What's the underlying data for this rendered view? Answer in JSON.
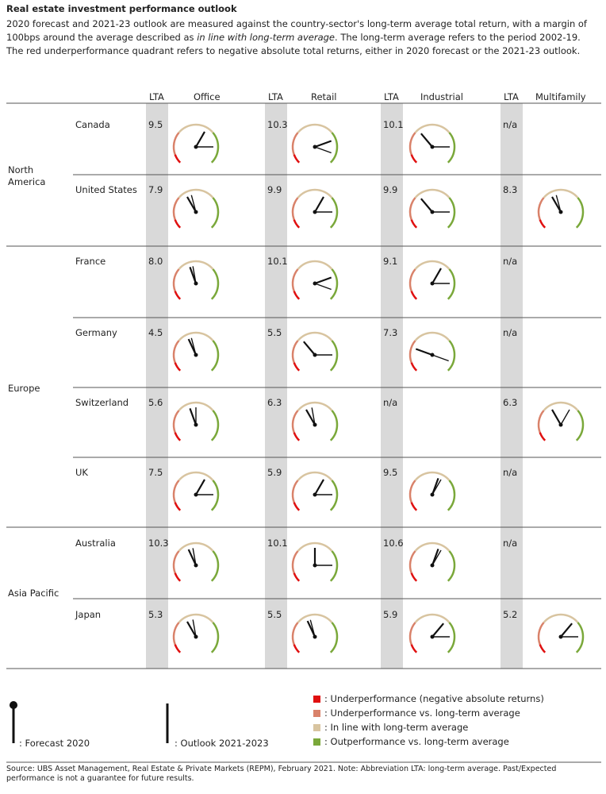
{
  "header": {
    "title": "Real estate investment performance outlook",
    "intro_before": "2020 forecast and 2021-23 outlook are measured against the country-sector's long-term average total return, with a margin of 100bps around the average described as ",
    "intro_italic": "in line with long-term average",
    "intro_after": ". The long-term average refers to the period 2002-19. The red underperformance quadrant refers to negative absolute total returns, either in 2020 forecast or the 2021-23 outlook."
  },
  "table": {
    "lta_header": "LTA",
    "sectors": [
      "Office",
      "Retail",
      "Industrial",
      "Multifamily"
    ],
    "regions": [
      "North America",
      "Europe",
      "Asia Pacific"
    ],
    "rows": [
      {
        "country": "Canada",
        "lta": [
          "9.5",
          "10.3",
          "10.1",
          "n/a"
        ],
        "needles": [
          [
            30,
            90
          ],
          [
            70,
            110
          ],
          [
            -40,
            90
          ],
          null
        ]
      },
      {
        "country": "United States",
        "lta": [
          "7.9",
          "9.9",
          "9.9",
          "8.3"
        ],
        "needles": [
          [
            -30,
            -15
          ],
          [
            30,
            90
          ],
          [
            -40,
            90
          ],
          [
            -30,
            -15
          ]
        ]
      },
      {
        "country": "France",
        "lta": [
          "8.0",
          "10.1",
          "9.1",
          "n/a"
        ],
        "needles": [
          [
            -20,
            -10
          ],
          [
            70,
            110
          ],
          [
            30,
            90
          ],
          null
        ]
      },
      {
        "country": "Germany",
        "lta": [
          "4.5",
          "5.5",
          "7.3",
          "n/a"
        ],
        "needles": [
          [
            -25,
            -15
          ],
          [
            -40,
            90
          ],
          [
            -70,
            110
          ],
          null
        ]
      },
      {
        "country": "Switzerland",
        "lta": [
          "5.6",
          "6.3",
          "n/a",
          "6.3"
        ],
        "needles": [
          [
            -20,
            0
          ],
          [
            -30,
            -10
          ],
          null,
          [
            -30,
            30
          ]
        ]
      },
      {
        "country": "UK",
        "lta": [
          "7.5",
          "5.9",
          "9.5",
          "n/a"
        ],
        "needles": [
          [
            30,
            90
          ],
          [
            30,
            90
          ],
          [
            20,
            30
          ],
          null
        ]
      },
      {
        "country": "Australia",
        "lta": [
          "10.3",
          "10.1",
          "10.6",
          "n/a"
        ],
        "needles": [
          [
            -25,
            -10
          ],
          [
            0,
            90
          ],
          [
            20,
            30
          ],
          null
        ]
      },
      {
        "country": "Japan",
        "lta": [
          "5.3",
          "5.5",
          "5.9",
          "5.2"
        ],
        "needles": [
          [
            -30,
            -10
          ],
          [
            -25,
            -15
          ],
          [
            40,
            90
          ],
          [
            40,
            90
          ]
        ]
      }
    ]
  },
  "legend": {
    "forecast": ": Forecast 2020",
    "outlook": ": Outlook 2021-2023",
    "items": [
      {
        "color": "#e01010",
        "label": ": Underperformance (negative absolute returns)"
      },
      {
        "color": "#d9826a",
        "label": ": Underperformance vs. long-term average"
      },
      {
        "color": "#d8c4a0",
        "label": ": In line with long-term average"
      },
      {
        "color": "#7aa83a",
        "label": ": Outperformance vs. long-term average"
      }
    ]
  },
  "footnote": "Source: UBS Asset Management, Real Estate & Private Markets (REPM), February 2021. Note: Abbreviation LTA: long-term average. Past/Expected performance is not a guarantee for future results."
}
